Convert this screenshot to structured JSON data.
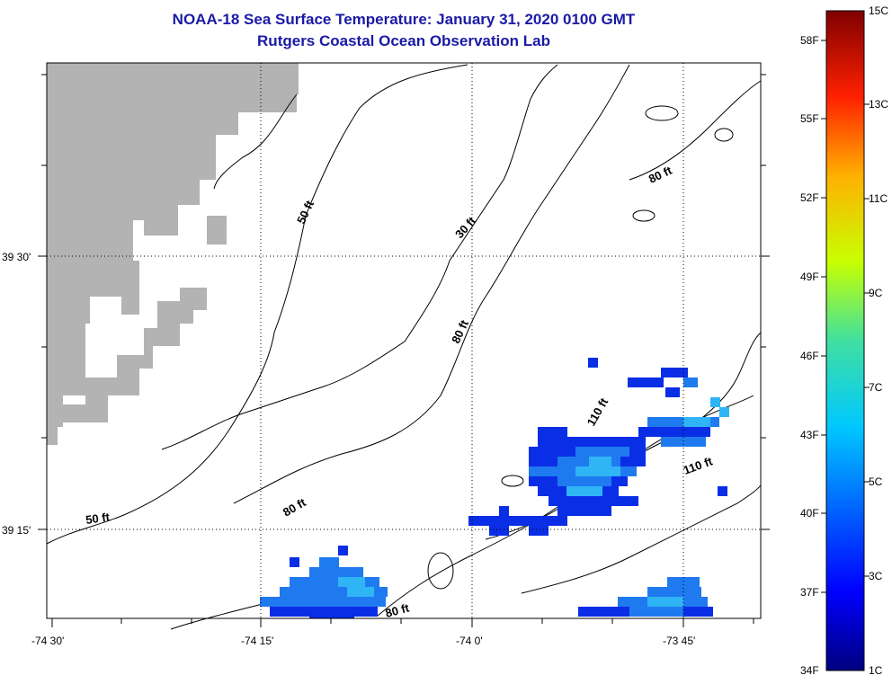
{
  "title": "NOAA-18 Sea Surface Temperature:  January 31, 2020 0100 GMT",
  "subtitle": "Rutgers Coastal Ocean Observation Lab",
  "lon_labels": [
    "-74 30'",
    "-74 15'",
    "-74 0'",
    "-73 45'"
  ],
  "lat_labels": [
    "39 30'",
    "39 15'"
  ],
  "contour_labels": [
    "50 ft",
    "30 ft",
    "80 ft",
    "80 ft",
    "80 ft",
    "110 ft",
    "110 ft",
    "50 ft",
    "80 ft",
    "80 ft"
  ],
  "colorbar": {
    "fahrenheit": [
      "58F",
      "55F",
      "52F",
      "49F",
      "46F",
      "43F",
      "40F",
      "37F",
      "34F"
    ],
    "celsius": [
      "15C",
      "13C",
      "11C",
      "9C",
      "7C",
      "5C",
      "3C",
      "1C"
    ]
  },
  "colors": {
    "land": "#b3b3b3",
    "title": "#1a1aa6",
    "cold": "#0a2ee6",
    "cool": "#1f7af0",
    "mild": "#2fb4f5"
  }
}
